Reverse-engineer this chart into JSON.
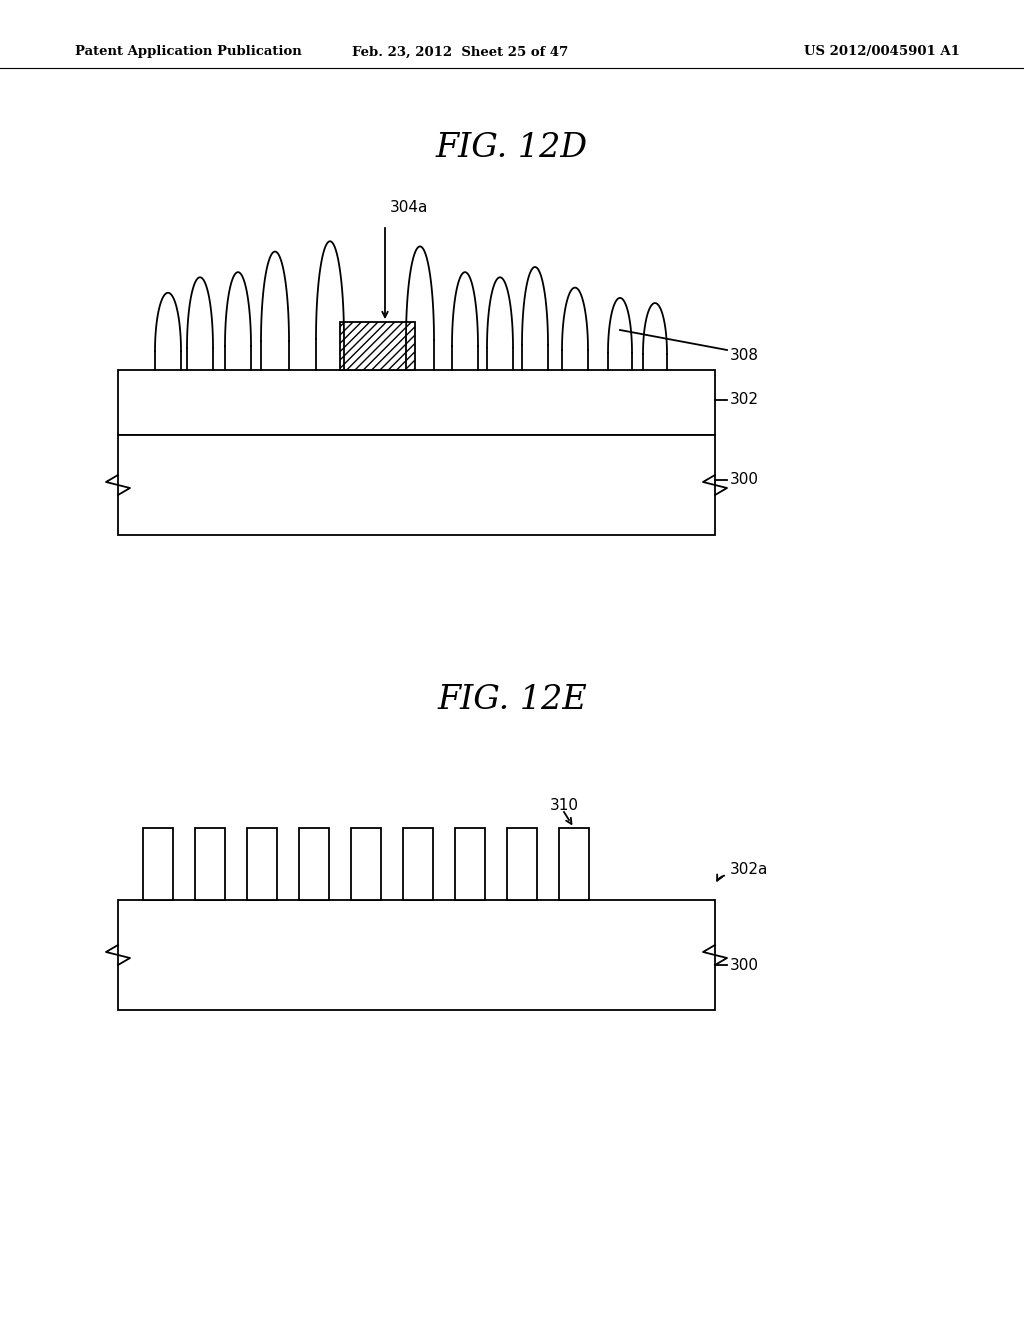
{
  "bg_color": "#ffffff",
  "text_color": "#000000",
  "header_left": "Patent Application Publication",
  "header_center": "Feb. 23, 2012  Sheet 25 of 47",
  "header_right": "US 2012/0045901 A1",
  "fig1_title": "FIG. 12D",
  "fig2_title": "FIG. 12E"
}
